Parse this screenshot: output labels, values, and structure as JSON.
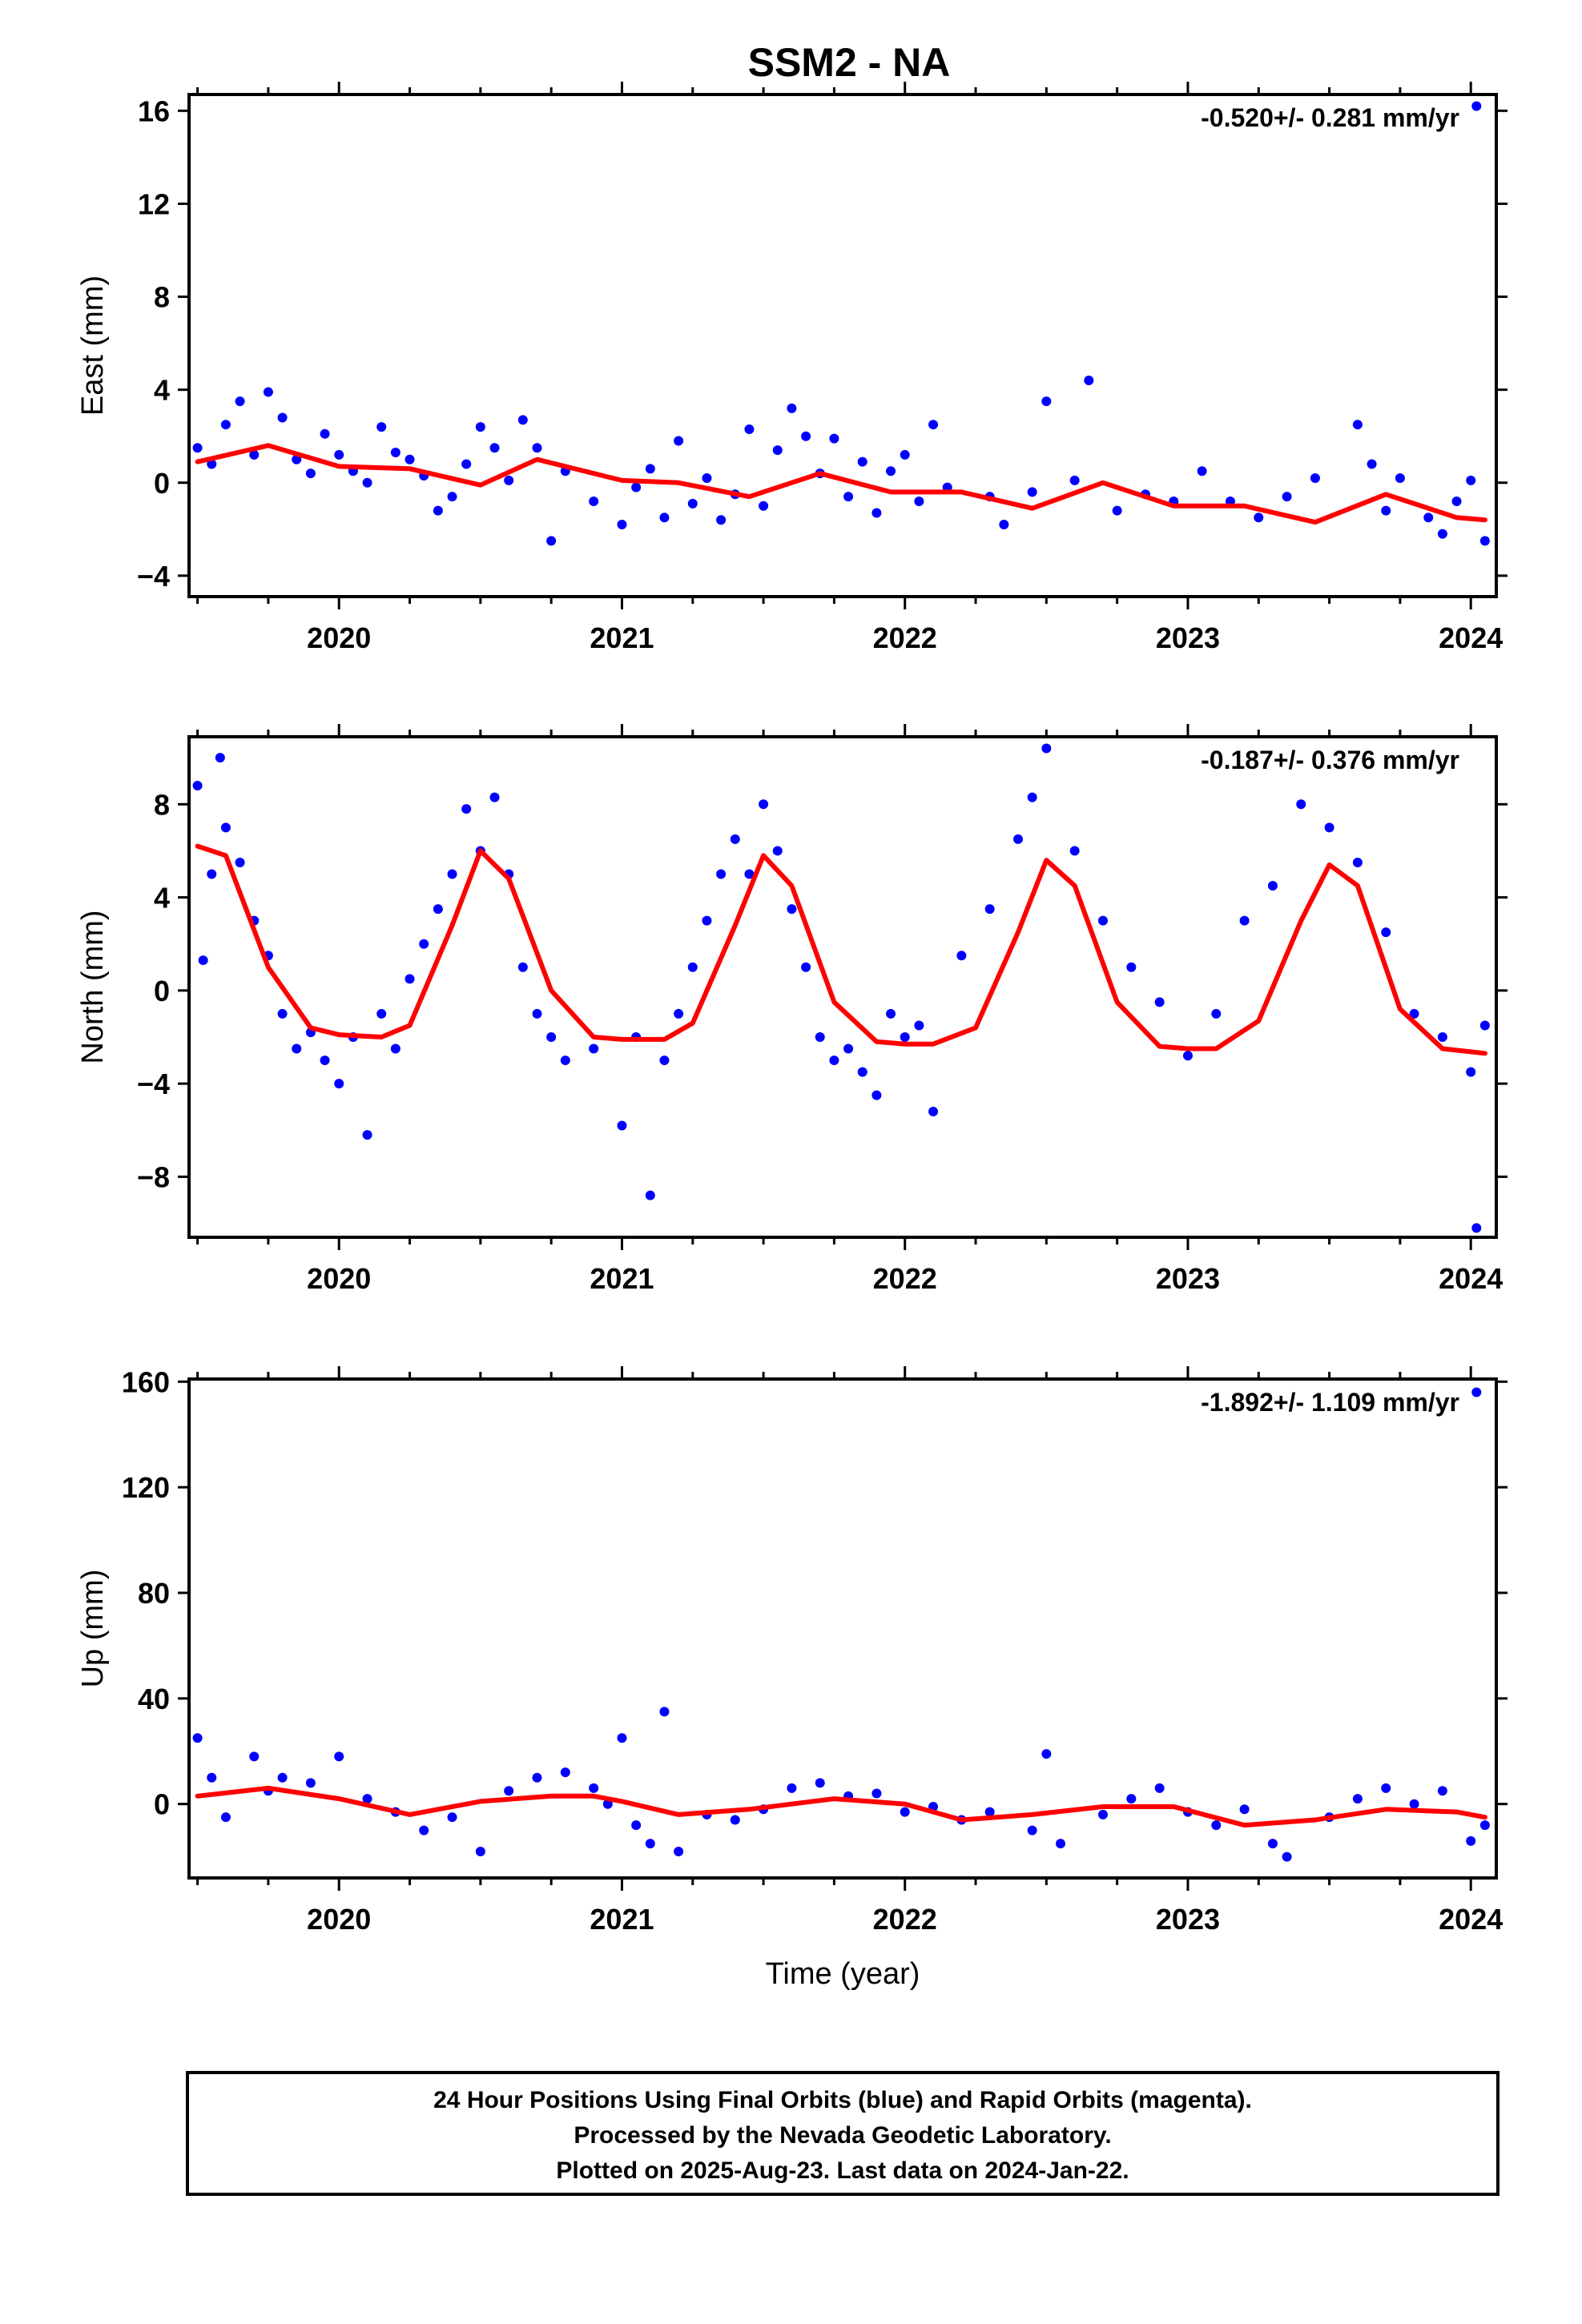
{
  "title": "SSM2 - NA",
  "colors": {
    "final": "#0000ff",
    "model": "#ff0000",
    "frame": "#000000"
  },
  "footer": {
    "line1": "24 Hour Positions Using Final Orbits (blue) and Rapid Orbits (magenta).",
    "line2": "Processed by the Nevada Geodetic Laboratory.",
    "line3": "Plotted on 2025-Aug-23. Last data on 2024-Jan-22."
  },
  "chart_data": [
    {
      "type": "scatter",
      "component": "east",
      "ylabel": "East (mm)",
      "xlabel": "",
      "rate": "-0.520+/- 0.281 mm/yr",
      "xlim": [
        2019.47,
        2024.09
      ],
      "ylim": [
        -4.9,
        16.7
      ],
      "xticks": [
        2020,
        2021,
        2022,
        2023,
        2024
      ],
      "yticks": [
        -4,
        0,
        4,
        8,
        12,
        16
      ],
      "grid": false,
      "series": [
        {
          "kind": "points",
          "color": "#0000ff",
          "x": [
            2019.5,
            2019.55,
            2019.6,
            2019.65,
            2019.7,
            2019.75,
            2019.8,
            2019.85,
            2019.9,
            2019.95,
            2020.0,
            2020.05,
            2020.1,
            2020.15,
            2020.2,
            2020.25,
            2020.3,
            2020.35,
            2020.4,
            2020.45,
            2020.5,
            2020.55,
            2020.6,
            2020.65,
            2020.7,
            2020.75,
            2020.8,
            2020.9,
            2021.0,
            2021.05,
            2021.1,
            2021.15,
            2021.2,
            2021.25,
            2021.3,
            2021.35,
            2021.4,
            2021.45,
            2021.5,
            2021.55,
            2021.6,
            2021.65,
            2021.7,
            2021.75,
            2021.8,
            2021.85,
            2021.9,
            2021.95,
            2022.0,
            2022.05,
            2022.1,
            2022.15,
            2022.3,
            2022.35,
            2022.45,
            2022.5,
            2022.6,
            2022.65,
            2022.75,
            2022.85,
            2022.95,
            2023.05,
            2023.15,
            2023.25,
            2023.35,
            2023.45,
            2023.6,
            2023.65,
            2023.7,
            2023.75,
            2023.85,
            2023.9,
            2023.95,
            2024.0,
            2024.05,
            2024.02
          ],
          "y": [
            1.5,
            0.8,
            2.5,
            3.5,
            1.2,
            3.9,
            2.8,
            1.0,
            0.4,
            2.1,
            1.2,
            0.5,
            0.0,
            2.4,
            1.3,
            1.0,
            0.3,
            -1.2,
            -0.6,
            0.8,
            2.4,
            1.5,
            0.1,
            2.7,
            1.5,
            -2.5,
            0.5,
            -0.8,
            -1.8,
            -0.2,
            0.6,
            -1.5,
            1.8,
            -0.9,
            0.2,
            -1.6,
            -0.5,
            2.3,
            -1.0,
            1.4,
            3.2,
            2.0,
            0.4,
            1.9,
            -0.6,
            0.9,
            -1.3,
            0.5,
            1.2,
            -0.8,
            2.5,
            -0.2,
            -0.6,
            -1.8,
            -0.4,
            3.5,
            0.1,
            4.4,
            -1.2,
            -0.5,
            -0.8,
            0.5,
            -0.8,
            -1.5,
            -0.6,
            0.2,
            2.5,
            0.8,
            -1.2,
            0.2,
            -1.5,
            -2.2,
            -0.8,
            0.1,
            -2.5,
            16.2
          ]
        },
        {
          "kind": "line",
          "color": "#ff0000",
          "x": [
            2019.5,
            2019.75,
            2020.0,
            2020.25,
            2020.5,
            2020.7,
            2021.0,
            2021.2,
            2021.45,
            2021.7,
            2021.95,
            2022.2,
            2022.45,
            2022.7,
            2022.95,
            2023.2,
            2023.45,
            2023.7,
            2023.95,
            2024.05
          ],
          "y": [
            0.9,
            1.6,
            0.7,
            0.6,
            -0.1,
            1.0,
            0.1,
            0.0,
            -0.6,
            0.4,
            -0.4,
            -0.4,
            -1.1,
            0.0,
            -1.0,
            -1.0,
            -1.7,
            -0.5,
            -1.5,
            -1.6
          ]
        }
      ]
    },
    {
      "type": "scatter",
      "component": "north",
      "ylabel": "North (mm)",
      "xlabel": "",
      "rate": "-0.187+/- 0.376 mm/yr",
      "xlim": [
        2019.47,
        2024.09
      ],
      "ylim": [
        -10.6,
        10.9
      ],
      "xticks": [
        2020,
        2021,
        2022,
        2023,
        2024
      ],
      "yticks": [
        -8,
        -4,
        0,
        4,
        8
      ],
      "grid": false,
      "series": [
        {
          "kind": "points",
          "color": "#0000ff",
          "x": [
            2019.5,
            2019.52,
            2019.55,
            2019.58,
            2019.6,
            2019.65,
            2019.7,
            2019.75,
            2019.8,
            2019.85,
            2019.9,
            2019.95,
            2020.0,
            2020.05,
            2020.1,
            2020.15,
            2020.2,
            2020.25,
            2020.3,
            2020.35,
            2020.4,
            2020.45,
            2020.5,
            2020.55,
            2020.6,
            2020.65,
            2020.7,
            2020.75,
            2020.8,
            2020.9,
            2021.0,
            2021.05,
            2021.1,
            2021.15,
            2021.2,
            2021.25,
            2021.3,
            2021.35,
            2021.4,
            2021.45,
            2021.5,
            2021.55,
            2021.6,
            2021.65,
            2021.7,
            2021.75,
            2021.8,
            2021.85,
            2021.9,
            2021.95,
            2022.0,
            2022.05,
            2022.1,
            2022.2,
            2022.3,
            2022.4,
            2022.45,
            2022.5,
            2022.6,
            2022.7,
            2022.8,
            2022.9,
            2023.0,
            2023.1,
            2023.2,
            2023.3,
            2023.4,
            2023.5,
            2023.6,
            2023.7,
            2023.8,
            2023.9,
            2024.0,
            2024.02,
            2024.05
          ],
          "y": [
            8.8,
            1.3,
            5.0,
            10.0,
            7.0,
            5.5,
            3.0,
            1.5,
            -1.0,
            -2.5,
            -1.8,
            -3.0,
            -4.0,
            -2.0,
            -6.2,
            -1.0,
            -2.5,
            0.5,
            2.0,
            3.5,
            5.0,
            7.8,
            6.0,
            8.3,
            5.0,
            1.0,
            -1.0,
            -2.0,
            -3.0,
            -2.5,
            -5.8,
            -2.0,
            -8.8,
            -3.0,
            -1.0,
            1.0,
            3.0,
            5.0,
            6.5,
            5.0,
            8.0,
            6.0,
            3.5,
            1.0,
            -2.0,
            -3.0,
            -2.5,
            -3.5,
            -4.5,
            -1.0,
            -2.0,
            -1.5,
            -5.2,
            1.5,
            3.5,
            6.5,
            8.3,
            10.4,
            6.0,
            3.0,
            1.0,
            -0.5,
            -2.8,
            -1.0,
            3.0,
            4.5,
            8.0,
            7.0,
            5.5,
            2.5,
            -1.0,
            -2.0,
            -3.5,
            -10.2,
            -1.5
          ]
        },
        {
          "kind": "line",
          "color": "#ff0000",
          "x": [
            2019.5,
            2019.6,
            2019.75,
            2019.9,
            2020.0,
            2020.15,
            2020.25,
            2020.4,
            2020.5,
            2020.6,
            2020.75,
            2020.9,
            2021.0,
            2021.15,
            2021.25,
            2021.4,
            2021.5,
            2021.6,
            2021.75,
            2021.9,
            2022.0,
            2022.1,
            2022.25,
            2022.4,
            2022.5,
            2022.6,
            2022.75,
            2022.9,
            2023.0,
            2023.1,
            2023.25,
            2023.4,
            2023.5,
            2023.6,
            2023.75,
            2023.9,
            2024.05
          ],
          "y": [
            6.2,
            5.8,
            1.0,
            -1.6,
            -1.9,
            -2.0,
            -1.5,
            2.8,
            6.0,
            4.8,
            0.0,
            -2.0,
            -2.1,
            -2.1,
            -1.4,
            2.8,
            5.8,
            4.5,
            -0.5,
            -2.2,
            -2.3,
            -2.3,
            -1.6,
            2.5,
            5.6,
            4.5,
            -0.5,
            -2.4,
            -2.5,
            -2.5,
            -1.3,
            3.0,
            5.4,
            4.5,
            -0.8,
            -2.5,
            -2.7
          ]
        }
      ]
    },
    {
      "type": "scatter",
      "component": "up",
      "ylabel": "Up (mm)",
      "xlabel": "Time (year)",
      "rate": "-1.892+/- 1.109 mm/yr",
      "xlim": [
        2019.47,
        2024.09
      ],
      "ylim": [
        -28,
        161
      ],
      "xticks": [
        2020,
        2021,
        2022,
        2023,
        2024
      ],
      "yticks": [
        0,
        40,
        80,
        120,
        160
      ],
      "grid": false,
      "series": [
        {
          "kind": "points",
          "color": "#0000ff",
          "x": [
            2019.5,
            2019.55,
            2019.6,
            2019.7,
            2019.75,
            2019.8,
            2019.9,
            2020.0,
            2020.1,
            2020.2,
            2020.3,
            2020.4,
            2020.5,
            2020.6,
            2020.7,
            2020.8,
            2020.9,
            2020.95,
            2021.0,
            2021.05,
            2021.1,
            2021.15,
            2021.2,
            2021.3,
            2021.4,
            2021.5,
            2021.6,
            2021.7,
            2021.8,
            2021.9,
            2022.0,
            2022.1,
            2022.2,
            2022.3,
            2022.45,
            2022.5,
            2022.55,
            2022.7,
            2022.8,
            2022.9,
            2023.0,
            2023.1,
            2023.2,
            2023.3,
            2023.35,
            2023.5,
            2023.6,
            2023.7,
            2023.8,
            2023.9,
            2024.0,
            2024.02,
            2024.05
          ],
          "y": [
            25,
            10,
            -5,
            18,
            5,
            10,
            8,
            18,
            2,
            -3,
            -10,
            -5,
            -18,
            5,
            10,
            12,
            6,
            0,
            25,
            -8,
            -15,
            35,
            -18,
            -4,
            -6,
            -2,
            6,
            8,
            3,
            4,
            -3,
            -1,
            -6,
            -3,
            -10,
            19,
            -15,
            -4,
            2,
            6,
            -3,
            -8,
            -2,
            -15,
            -20,
            -5,
            2,
            6,
            0,
            5,
            -14,
            156,
            -8
          ]
        },
        {
          "kind": "line",
          "color": "#ff0000",
          "x": [
            2019.5,
            2019.75,
            2020.0,
            2020.25,
            2020.5,
            2020.75,
            2020.9,
            2021.0,
            2021.2,
            2021.45,
            2021.75,
            2022.0,
            2022.2,
            2022.45,
            2022.7,
            2022.95,
            2023.2,
            2023.45,
            2023.7,
            2023.95,
            2024.05
          ],
          "y": [
            3,
            6,
            2,
            -4,
            1,
            3,
            3,
            1,
            -4,
            -2,
            2,
            0,
            -6,
            -4,
            -1,
            -1,
            -8,
            -6,
            -2,
            -3,
            -5
          ]
        }
      ]
    }
  ]
}
